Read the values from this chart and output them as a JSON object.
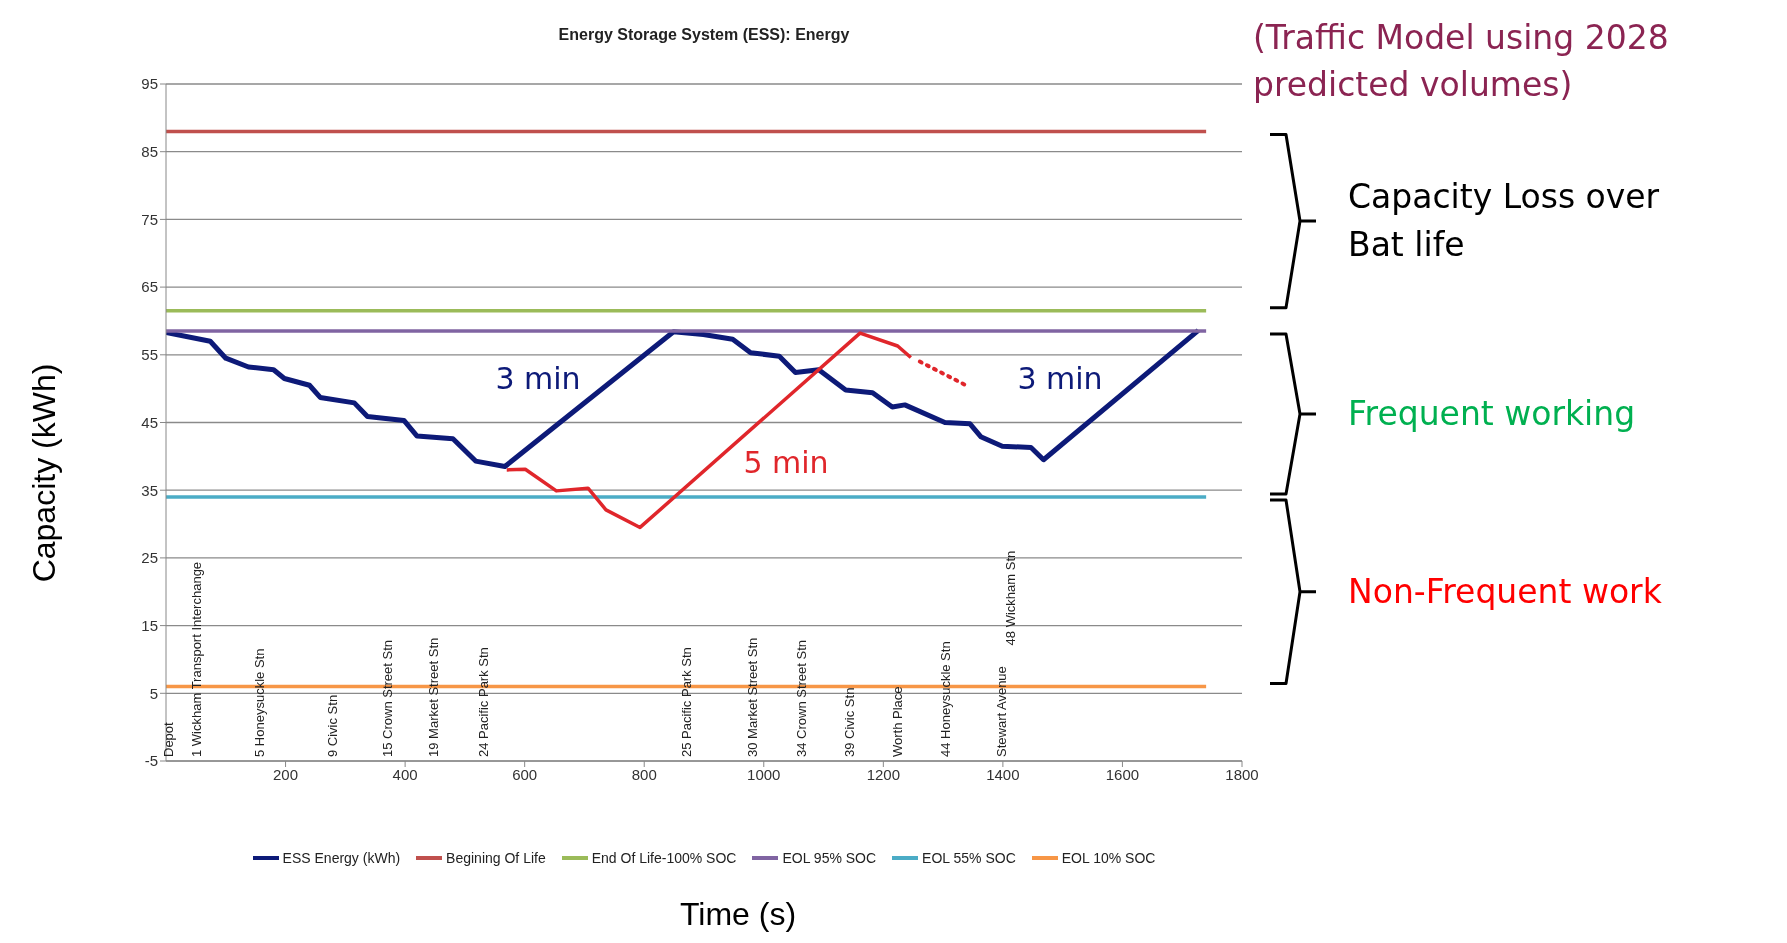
{
  "chart_data": {
    "type": "line",
    "title": "Energy Storage System (ESS): Energy",
    "xlabel": "Time (s)",
    "ylabel": "Capacity (kWh)",
    "xlim": [
      0,
      1800
    ],
    "xticks": [
      200,
      400,
      600,
      800,
      1000,
      1200,
      1400,
      1600,
      1800
    ],
    "ylim": [
      -5,
      95
    ],
    "yticks": [
      -5,
      5,
      15,
      25,
      35,
      45,
      55,
      65,
      75,
      85,
      95
    ],
    "grid": "y",
    "legend": "bottom",
    "series": [
      {
        "name": "ESS Energy (kWh)",
        "color": "#0d1a78",
        "x": [
          0,
          74,
          100,
          138,
          180,
          198,
          240,
          258,
          315,
          337,
          398,
          420,
          480,
          518,
          567,
          849,
          899,
          948,
          978,
          1026,
          1053,
          1092,
          1137,
          1182,
          1215,
          1236,
          1303,
          1345,
          1363,
          1399,
          1447,
          1468,
          1727
        ],
        "values": [
          58.3,
          57.0,
          54.5,
          53.2,
          52.8,
          51.5,
          50.5,
          48.7,
          47.9,
          45.9,
          45.3,
          43.0,
          42.6,
          39.3,
          38.5,
          58.4,
          58.0,
          57.3,
          55.3,
          54.8,
          52.4,
          52.8,
          49.8,
          49.4,
          47.3,
          47.6,
          45.0,
          44.8,
          42.9,
          41.5,
          41.3,
          39.5,
          58.6
        ]
      },
      {
        "name": "Begining Of Life",
        "color": "#c0504d",
        "x": [
          0,
          1740
        ],
        "values": [
          88,
          88
        ]
      },
      {
        "name": "End Of Life-100% SOC",
        "color": "#9bbb59",
        "x": [
          0,
          1740
        ],
        "values": [
          61.5,
          61.5
        ]
      },
      {
        "name": "EOL 95% SOC",
        "color": "#8064a2",
        "x": [
          0,
          1740
        ],
        "values": [
          58.5,
          58.5
        ]
      },
      {
        "name": "EOL 55% SOC",
        "color": "#4bacc6",
        "x": [
          0,
          1740
        ],
        "values": [
          34,
          34
        ]
      },
      {
        "name": "EOL 10% SOC",
        "color": "#f79646",
        "x": [
          0,
          1740
        ],
        "values": [
          6,
          6
        ]
      },
      {
        "color": "#e0262b",
        "x": [
          570,
          601,
          653,
          706,
          736,
          793,
          1161,
          1224,
          1246
        ],
        "values": [
          38.0,
          38.1,
          34.9,
          35.3,
          32.1,
          29.5,
          58.2,
          56.3,
          54.6
        ]
      },
      {
        "color": "#e0262b",
        "line_style": "dotted",
        "x": [
          1261,
          1336
        ],
        "values": [
          54.0,
          50.6
        ]
      }
    ],
    "annotations": [
      "(Traffic Model using 2028 predicted volumes)",
      "Capacity Loss over Bat life",
      "Frequent working",
      "Non-Frequent work",
      "3 min",
      "3 min",
      "5 min",
      "Depot",
      "1 Wickham Transport Interchange",
      "5 Honeysuckle Stn",
      "9 Civic Stn",
      "15 Crown Street Stn",
      "19 Market Street Stn",
      "24 Pacific Park Stn",
      "25 Pacific Park Stn",
      "30 Market Street Stn",
      "34 Crown Street Stn",
      "39 Civic Stn",
      "Worth Place",
      "44 Honeysuckle Stn",
      "Stewart Avenue",
      "48 Wickham Stn"
    ]
  }
}
